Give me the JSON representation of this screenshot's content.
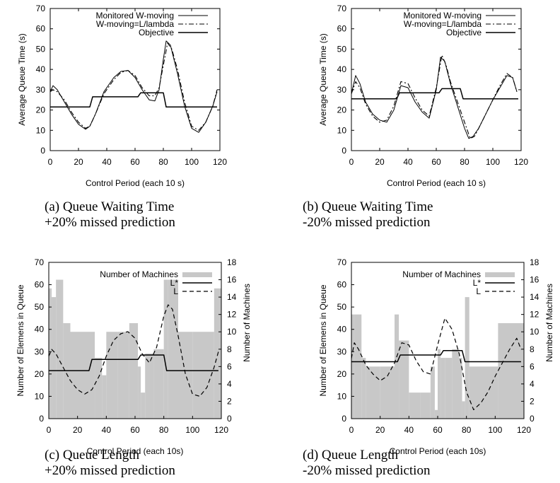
{
  "chart_data": [
    {
      "type": "line",
      "panel": "a",
      "caption": [
        "(a) Queue Waiting Time",
        "+20% missed prediction"
      ],
      "xlabel": "Control Period (each 10 s)",
      "ylabel": "Average Queue Time (s)",
      "xlim": [
        0,
        120
      ],
      "ylim": [
        0,
        70
      ],
      "xticks": [
        0,
        20,
        40,
        60,
        80,
        100,
        120
      ],
      "yticks": [
        0,
        10,
        20,
        30,
        40,
        50,
        60,
        70
      ],
      "legend_position": "top-right",
      "series": [
        {
          "name": "Monitored W-moving",
          "style": "solid-thin",
          "x": [
            0,
            2,
            5,
            10,
            15,
            20,
            25,
            28,
            32,
            38,
            45,
            50,
            55,
            60,
            65,
            70,
            74,
            77,
            80,
            82,
            85,
            90,
            95,
            100,
            105,
            110,
            115,
            118
          ],
          "y": [
            29,
            32,
            30,
            24,
            18,
            13,
            10.5,
            12,
            18,
            29,
            36,
            39,
            39.5,
            36,
            30,
            25,
            24.5,
            30,
            45,
            54,
            52,
            38,
            22,
            11,
            9,
            14,
            22,
            29
          ]
        },
        {
          "name": "W-moving=L/lambda",
          "style": "dashdot",
          "x": [
            0,
            2,
            5,
            10,
            15,
            20,
            25,
            28,
            32,
            38,
            45,
            50,
            55,
            60,
            65,
            70,
            74,
            77,
            80,
            83,
            86,
            90,
            95,
            100,
            105,
            110,
            115,
            118
          ],
          "y": [
            29,
            30,
            29,
            25,
            19,
            14,
            11,
            12,
            18,
            28,
            35,
            38.5,
            39.5,
            37,
            31,
            27,
            27,
            31,
            42,
            53,
            50,
            40,
            24,
            12,
            10,
            14,
            22,
            30
          ]
        },
        {
          "name": "Objective",
          "style": "solid",
          "x": [
            0,
            28,
            30,
            62,
            64,
            80,
            82,
            118
          ],
          "y": [
            21.5,
            21.5,
            26.5,
            26.5,
            28.5,
            28.5,
            21.5,
            21.5
          ]
        }
      ]
    },
    {
      "type": "line",
      "panel": "b",
      "caption": [
        "(b) Queue Waiting Time",
        "-20% missed prediction"
      ],
      "xlabel": "Control Period (each 10 s)",
      "ylabel": "Average Queue Time (s)",
      "xlim": [
        0,
        120
      ],
      "ylim": [
        0,
        70
      ],
      "xticks": [
        0,
        20,
        40,
        60,
        80,
        100,
        120
      ],
      "yticks": [
        0,
        10,
        20,
        30,
        40,
        50,
        60,
        70
      ],
      "legend_position": "top-right",
      "series": [
        {
          "name": "Monitored W-moving",
          "style": "solid-thin",
          "x": [
            0,
            3,
            6,
            10,
            15,
            20,
            25,
            30,
            35,
            40,
            45,
            50,
            55,
            60,
            63,
            66,
            70,
            75,
            80,
            83,
            86,
            90,
            95,
            100,
            105,
            110,
            114,
            117
          ],
          "y": [
            28,
            37,
            33,
            24,
            18,
            15,
            14,
            20,
            32,
            31,
            24,
            19,
            16,
            30,
            46,
            44,
            33,
            22,
            11,
            6,
            7,
            11,
            18,
            25,
            31,
            37,
            36,
            29
          ]
        },
        {
          "name": "W-moving=L/lambda",
          "style": "dashdot",
          "x": [
            0,
            3,
            6,
            10,
            15,
            20,
            25,
            30,
            35,
            40,
            45,
            50,
            55,
            60,
            64,
            67,
            70,
            75,
            80,
            84,
            87,
            90,
            95,
            100,
            105,
            110,
            114,
            117
          ],
          "y": [
            28,
            34,
            31,
            23,
            17,
            14,
            15,
            22,
            34,
            33,
            26,
            20,
            17,
            31,
            47,
            42,
            34,
            24,
            14,
            6,
            7,
            11,
            18,
            25,
            32,
            38,
            36,
            29
          ]
        },
        {
          "name": "Objective",
          "style": "solid",
          "x": [
            0,
            32,
            34,
            62,
            64,
            77,
            79,
            118
          ],
          "y": [
            25.5,
            25.5,
            28.5,
            28.5,
            30.5,
            30.5,
            25.5,
            25.5
          ]
        }
      ]
    },
    {
      "type": "bar+line",
      "panel": "c",
      "caption": [
        "(c) Queue Length",
        "+20% missed prediction"
      ],
      "xlabel": "Control Period (each 10s)",
      "ylabel": "Number of Elemens in Queue",
      "y2label": "Number of Machines",
      "xlim": [
        0,
        120
      ],
      "ylim": [
        0,
        70
      ],
      "y2lim": [
        0,
        18
      ],
      "xticks": [
        0,
        20,
        40,
        60,
        80,
        100,
        120
      ],
      "yticks": [
        0,
        10,
        20,
        30,
        40,
        50,
        60,
        70
      ],
      "y2ticks": [
        0,
        2,
        4,
        6,
        8,
        10,
        12,
        14,
        16,
        18
      ],
      "legend_position": "top-right",
      "bars": {
        "name": "Number of Machines",
        "axis": "y2",
        "x_start": [
          0,
          2,
          5,
          10,
          15,
          32,
          37,
          40,
          48,
          56,
          62,
          64,
          67,
          73,
          80,
          83,
          90,
          100,
          115
        ],
        "x_end": [
          2,
          5,
          10,
          15,
          32,
          37,
          40,
          48,
          56,
          62,
          64,
          67,
          73,
          80,
          83,
          90,
          100,
          115,
          120
        ],
        "values": [
          15,
          14,
          16,
          11,
          10,
          7,
          5,
          10,
          10,
          11,
          6,
          3,
          7.5,
          8,
          16,
          16,
          10,
          10,
          15
        ]
      },
      "series": [
        {
          "name": "L*",
          "style": "solid",
          "axis": "y",
          "x": [
            0,
            28,
            30,
            62,
            64,
            80,
            82,
            118
          ],
          "y": [
            21.5,
            21.5,
            26.5,
            26.5,
            28.5,
            28.5,
            21.5,
            21.5
          ]
        },
        {
          "name": "L",
          "style": "dashed",
          "axis": "y",
          "x": [
            0,
            2,
            5,
            10,
            15,
            20,
            25,
            30,
            35,
            40,
            45,
            50,
            55,
            60,
            65,
            70,
            75,
            80,
            83,
            86,
            90,
            95,
            100,
            105,
            110,
            115,
            118
          ],
          "y": [
            28,
            31,
            29,
            23,
            17,
            13,
            11,
            13,
            19,
            28,
            35,
            38,
            39,
            36,
            29,
            25,
            32,
            46,
            51,
            49,
            37,
            20,
            11,
            10,
            14,
            23,
            30
          ]
        }
      ]
    },
    {
      "type": "bar+line",
      "panel": "d",
      "caption": [
        "(d) Queue Length",
        "-20% missed prediction"
      ],
      "xlabel": "Control Period (each 10s)",
      "ylabel": "Number of Elemens in Queue",
      "y2label": "Number of Machines",
      "xlim": [
        0,
        120
      ],
      "ylim": [
        0,
        70
      ],
      "y2lim": [
        0,
        18
      ],
      "xticks": [
        0,
        20,
        40,
        60,
        80,
        100,
        120
      ],
      "yticks": [
        0,
        10,
        20,
        30,
        40,
        50,
        60,
        70
      ],
      "y2ticks": [
        0,
        2,
        4,
        6,
        8,
        10,
        12,
        14,
        16,
        18
      ],
      "legend_position": "top-right",
      "bars": {
        "name": "Number of Machines",
        "axis": "y2",
        "x_start": [
          0,
          2,
          7,
          10,
          20,
          30,
          33,
          40,
          48,
          55,
          58,
          60,
          62,
          65,
          70,
          75,
          77,
          79,
          82,
          90,
          102
        ],
        "x_end": [
          2,
          7,
          10,
          20,
          30,
          33,
          40,
          48,
          55,
          58,
          60,
          62,
          65,
          70,
          75,
          77,
          79,
          82,
          90,
          102,
          120
        ],
        "values": [
          12,
          12,
          7,
          6,
          6,
          12,
          9,
          3,
          3,
          6,
          1,
          8,
          7,
          7,
          8,
          7,
          2,
          14,
          6,
          6,
          11
        ]
      },
      "series": [
        {
          "name": "L*",
          "style": "solid",
          "axis": "y",
          "x": [
            0,
            32,
            34,
            62,
            64,
            77,
            79,
            118
          ],
          "y": [
            25.5,
            25.5,
            28.5,
            28.5,
            30.5,
            30.5,
            25.5,
            25.5
          ]
        },
        {
          "name": "L",
          "style": "dashed",
          "axis": "y",
          "x": [
            0,
            2,
            5,
            10,
            15,
            20,
            25,
            30,
            35,
            40,
            45,
            50,
            55,
            60,
            65,
            70,
            75,
            80,
            85,
            90,
            95,
            100,
            105,
            110,
            115,
            118
          ],
          "y": [
            27,
            34,
            31,
            24,
            20,
            17,
            19,
            25,
            34,
            33,
            26,
            21,
            20,
            33,
            45,
            40,
            29,
            12,
            4,
            7,
            12,
            19,
            25,
            31,
            36,
            31
          ]
        }
      ]
    }
  ]
}
